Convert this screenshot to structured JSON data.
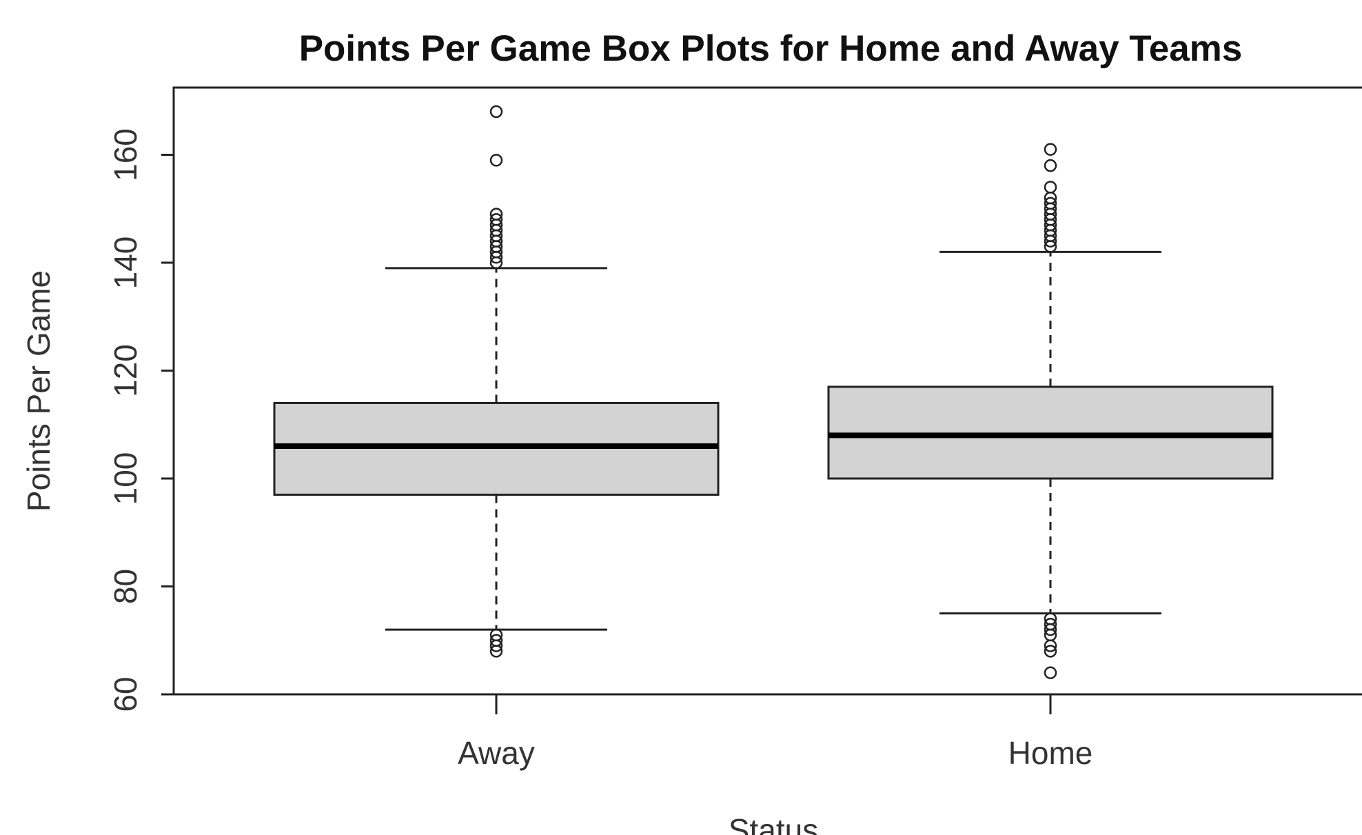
{
  "chart_data": {
    "type": "box",
    "title": "Points Per Game Box Plots for Home and Away Teams",
    "xlabel": "Status",
    "ylabel": "Points Per Game",
    "ylim": [
      60,
      170
    ],
    "yticks": [
      "60",
      "80",
      "100",
      "120",
      "140",
      "160"
    ],
    "categories": [
      "Away",
      "Home"
    ],
    "colors": {
      "box_fill": "#d3d3d3",
      "stroke": "#222222"
    },
    "boxes": [
      {
        "name": "Away",
        "whisker_low": 72,
        "q1": 97,
        "median": 106,
        "q3": 114,
        "whisker_high": 139,
        "outliers": [
          140,
          141,
          142,
          143,
          144,
          145,
          146,
          147,
          148,
          149,
          159,
          168,
          68,
          69,
          70,
          71
        ]
      },
      {
        "name": "Home",
        "whisker_low": 75,
        "q1": 100,
        "median": 108,
        "q3": 117,
        "whisker_high": 142,
        "outliers": [
          143,
          144,
          145,
          146,
          147,
          148,
          149,
          150,
          151,
          152,
          154,
          158,
          161,
          64,
          68,
          69,
          71,
          72,
          73,
          74
        ]
      }
    ]
  }
}
